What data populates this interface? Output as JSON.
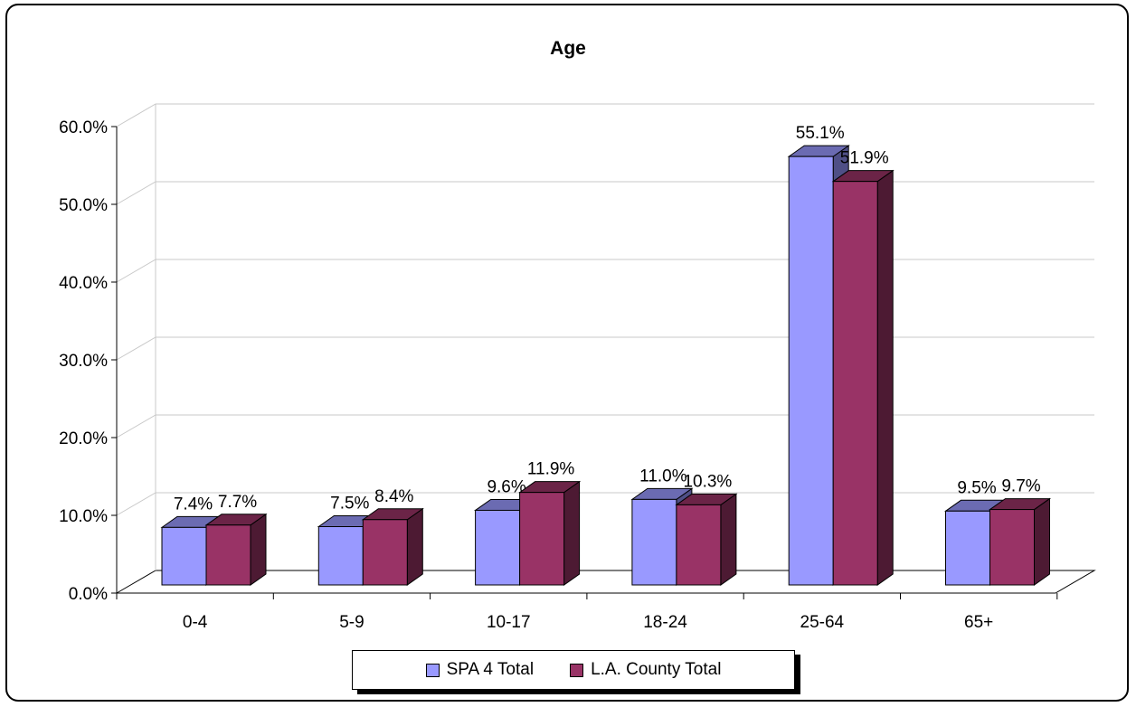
{
  "colors": {
    "series_fronts": [
      "#9999ff",
      "#993366"
    ],
    "series_tops": [
      "#6b6bb2",
      "#6b2447"
    ],
    "series_sides": [
      "#4f4f86",
      "#4d1a33"
    ]
  },
  "chart_data": {
    "type": "bar",
    "title": "Age",
    "xlabel": "",
    "ylabel": "",
    "categories": [
      "0-4",
      "5-9",
      "10-17",
      "18-24",
      "25-64",
      "65+"
    ],
    "series": [
      {
        "name": "SPA 4 Total",
        "values": [
          7.4,
          7.5,
          9.6,
          11.0,
          55.1,
          9.5
        ],
        "labels": [
          "7.4%",
          "7.5%",
          "9.6%",
          "11.0%",
          "55.1%",
          "9.5%"
        ]
      },
      {
        "name": "L.A. County Total",
        "values": [
          7.7,
          8.4,
          11.9,
          10.3,
          51.9,
          9.7
        ],
        "labels": [
          "7.7%",
          "8.4%",
          "11.9%",
          "10.3%",
          "51.9%",
          "9.7%"
        ]
      }
    ],
    "ylim": [
      0,
      60
    ],
    "yticks": [
      0,
      10,
      20,
      30,
      40,
      50,
      60
    ],
    "ytick_labels": [
      "0.0%",
      "10.0%",
      "20.0%",
      "30.0%",
      "40.0%",
      "50.0%",
      "60.0%"
    ],
    "grid": true,
    "legend": "bottom-center",
    "style": "3d-clustered-column"
  }
}
